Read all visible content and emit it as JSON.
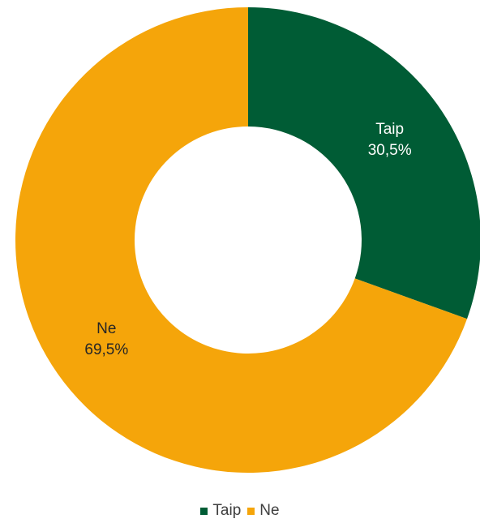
{
  "chart_data": {
    "type": "pie",
    "title": "",
    "slices": [
      {
        "label": "Taip",
        "value": 30.5,
        "display": "30,5%",
        "color": "#005C35",
        "text_color": "#ffffff"
      },
      {
        "label": "Ne",
        "value": 69.5,
        "display": "69,5%",
        "color": "#F5A50A",
        "text_color": "#262626"
      }
    ],
    "legend": {
      "position": "bottom",
      "entries": [
        "Taip",
        "Ne"
      ]
    }
  }
}
